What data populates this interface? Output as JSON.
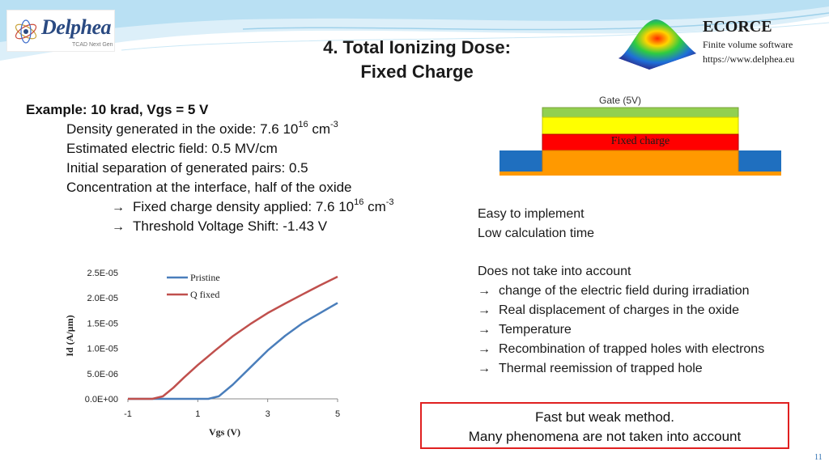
{
  "logo": {
    "text": "Delphea",
    "sub": "TCAD Next Gen"
  },
  "title": {
    "line1": "4. Total Ionizing Dose:",
    "line2": "Fixed Charge"
  },
  "brand": {
    "name": "ECORCE",
    "subtitle": "Finite volume software",
    "url": "https://www.delphea.eu"
  },
  "example": {
    "heading": "Example: 10 krad, Vgs = 5 V",
    "density": {
      "text": "Density generated in the oxide: 7.6 10",
      "exp": "16",
      "unit": " cm",
      "unit_exp": "-3"
    },
    "field": "Estimated electric field: 0.5 MV/cm",
    "separation": "Initial separation of generated pairs: 0.5",
    "concentration": "Concentration at the interface, half of the oxide",
    "applied": {
      "text": "Fixed charge density applied: 7.6 10",
      "exp": "16",
      "unit": " cm",
      "unit_exp": "-3"
    },
    "shift": "Threshold Voltage Shift: -1.43 V",
    "arrow": "→"
  },
  "device": {
    "gate_label": "Gate (5V)",
    "fixed_label": "Fixed charge",
    "colors": {
      "gate": "#92d050",
      "oxide": "#ffff00",
      "charge": "#ff0000",
      "substrate": "#ff9900",
      "contact": "#1f6fbf"
    }
  },
  "pros": [
    "Easy to implement",
    "Low calculation time"
  ],
  "cons": {
    "heading": "Does not take into account",
    "arrow": "→",
    "items": [
      "change of the electric field during irradiation",
      "Real displacement of charges in the oxide",
      "Temperature",
      "Recombination of  trapped holes with electrons",
      "Thermal reemission of trapped hole"
    ]
  },
  "callout": {
    "line1": "Fast but weak method.",
    "line2": "Many phenomena are not taken into account"
  },
  "page_number": "11",
  "chart_data": {
    "type": "line",
    "xlabel": "Vgs (V)",
    "ylabel": "Id (A/µm)",
    "xlim": [
      -1,
      5
    ],
    "ylim": [
      0,
      2.5e-05
    ],
    "xticks": [
      "-1",
      "1",
      "3",
      "5"
    ],
    "yticks": [
      "0.0E+00",
      "5.0E-06",
      "1.0E-05",
      "1.5E-05",
      "2.0E-05",
      "2.5E-05"
    ],
    "legend_position": "top-center",
    "series": [
      {
        "name": "Pristine",
        "color": "#4a7ebb",
        "x": [
          -1,
          0,
          0.5,
          1,
          1.3,
          1.6,
          2,
          2.5,
          3,
          3.5,
          4,
          4.5,
          5
        ],
        "y": [
          0,
          0,
          0,
          0,
          0,
          5e-07,
          2.8e-06,
          6.2e-06,
          9.6e-06,
          1.25e-05,
          1.5e-05,
          1.7e-05,
          1.9e-05
        ]
      },
      {
        "name": "Q fixed",
        "color": "#c0504d",
        "x": [
          -1,
          -0.3,
          0,
          0.3,
          0.6,
          1,
          1.5,
          2,
          2.5,
          3,
          3.5,
          4,
          4.5,
          5
        ],
        "y": [
          0,
          0,
          5e-07,
          2.2e-06,
          4.2e-06,
          6.7e-06,
          9.6e-06,
          1.24e-05,
          1.48e-05,
          1.7e-05,
          1.89e-05,
          2.07e-05,
          2.25e-05,
          2.42e-05
        ]
      }
    ]
  }
}
